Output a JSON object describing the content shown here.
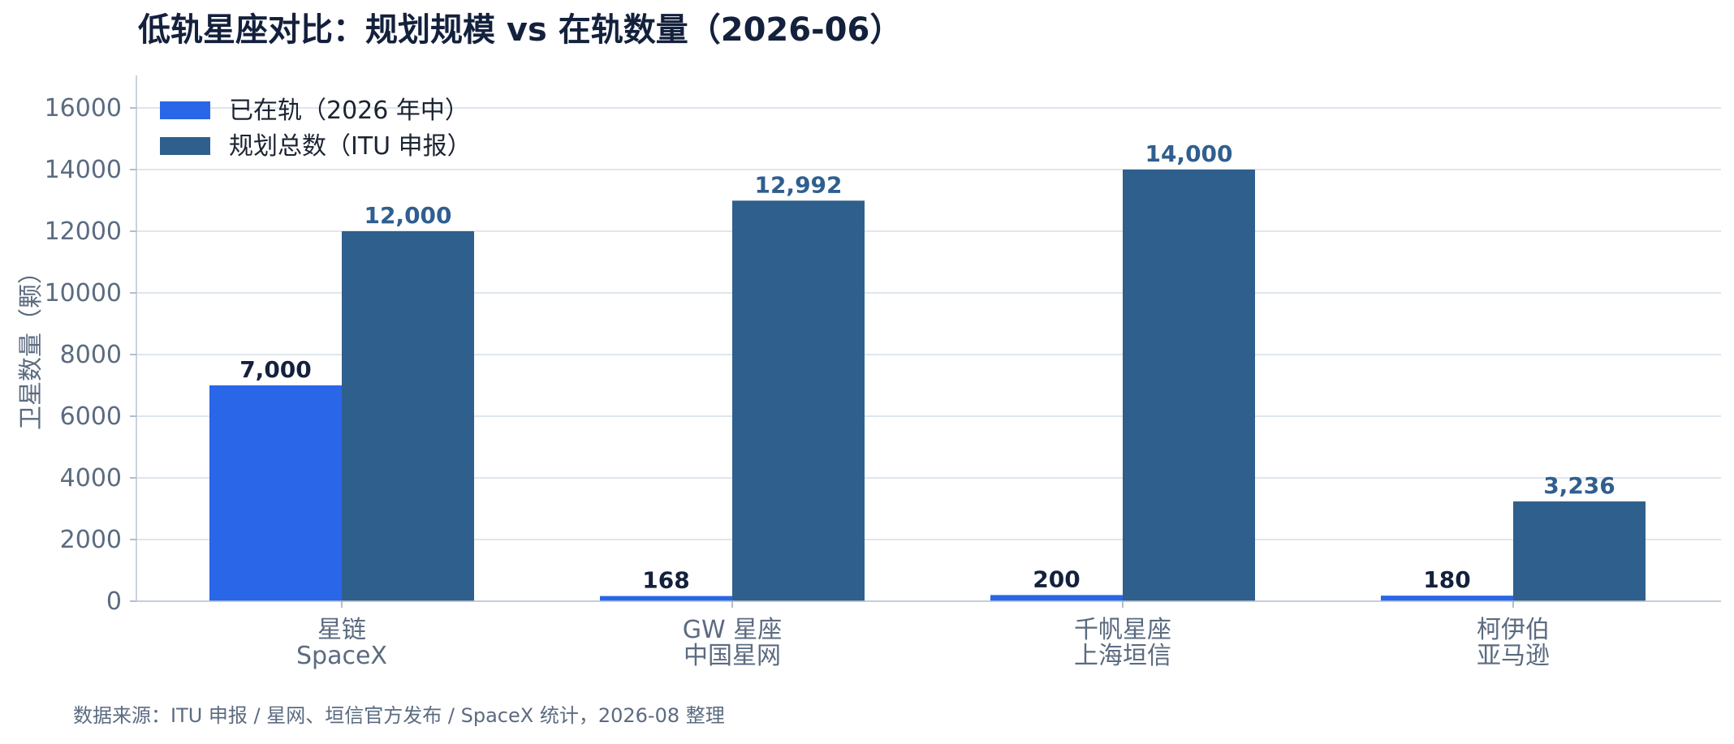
{
  "chart_data": {
    "type": "bar",
    "title": "低轨星座对比：规划规模 vs 在轨数量（2026-06）",
    "ylabel": "卫星数量（颗）",
    "xlabel": "",
    "ylim": [
      0,
      17000
    ],
    "yticks": [
      0,
      2000,
      4000,
      6000,
      8000,
      10000,
      12000,
      14000,
      16000
    ],
    "categories": [
      [
        "星链",
        "SpaceX"
      ],
      [
        "GW 星座",
        "中国星网"
      ],
      [
        "千帆星座",
        "上海垣信"
      ],
      [
        "柯伊伯",
        "亚马逊"
      ]
    ],
    "series": [
      {
        "name": "已在轨（2026 年中）",
        "color": "#2966e8",
        "values": [
          7000,
          168,
          200,
          180
        ],
        "labels": [
          "7,000",
          "168",
          "200",
          "180"
        ]
      },
      {
        "name": "规划总数（ITU 申报）",
        "color": "#2f5f8c",
        "values": [
          12000,
          12992,
          14000,
          3236
        ],
        "labels": [
          "12,000",
          "12,992",
          "14,000",
          "3,236"
        ]
      }
    ],
    "grid": true,
    "legend_position": "top-left",
    "source_note": "数据来源：ITU 申报 / 星网、垣信官方发布 / SpaceX 统计，2026-08 整理"
  }
}
